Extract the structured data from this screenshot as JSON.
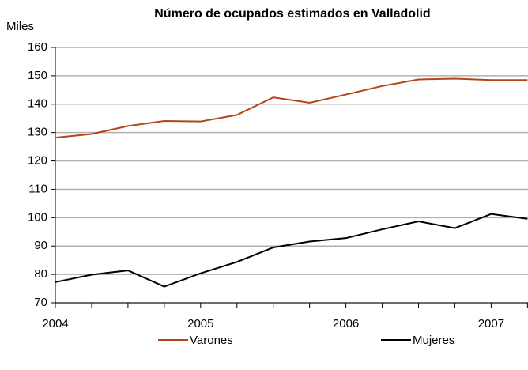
{
  "chart_data": {
    "type": "line",
    "title": "Número de ocupados estimados en  Valladolid",
    "y_label": "Miles",
    "categories": [
      "2004",
      null,
      null,
      null,
      "2005",
      null,
      null,
      null,
      "2006",
      null,
      null,
      null,
      "2007",
      null
    ],
    "series": [
      {
        "name": "Varones",
        "color": "#b5441a",
        "values": [
          128.2,
          129.5,
          132.3,
          134.1,
          133.9,
          136.2,
          142.4,
          140.5,
          143.4,
          146.4,
          148.7,
          149.0,
          148.5,
          148.5
        ]
      },
      {
        "name": "Mujeres",
        "color": "#000000",
        "values": [
          77.3,
          79.9,
          81.4,
          75.7,
          80.4,
          84.4,
          89.5,
          91.6,
          92.8,
          95.9,
          98.7,
          96.3,
          101.3,
          99.6
        ]
      }
    ],
    "ylim": [
      70,
      160
    ],
    "yticks": [
      70,
      80,
      90,
      100,
      110,
      120,
      130,
      140,
      150,
      160
    ],
    "grid": true,
    "legend": "bottom"
  }
}
